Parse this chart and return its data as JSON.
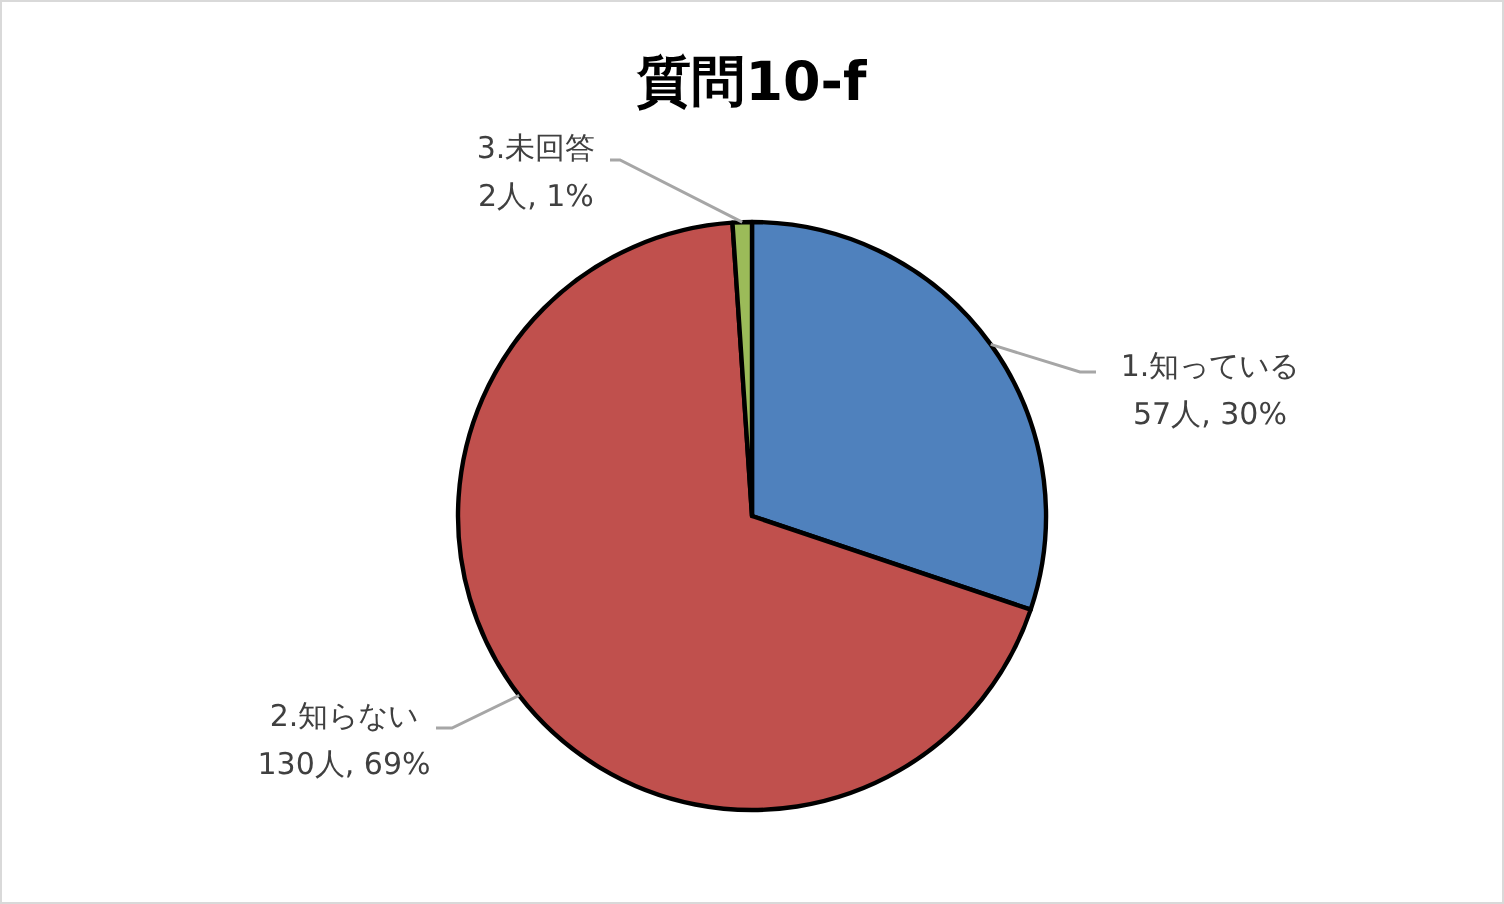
{
  "chart_data": {
    "type": "pie",
    "title": "質問10-f",
    "categories": [
      "1.知っている",
      "2.知らない",
      "3.未回答"
    ],
    "values": [
      57,
      130,
      2
    ],
    "colors": [
      "#4f81bd",
      "#c0504d",
      "#9bbb59"
    ],
    "value_labels": [
      "57人, 30%",
      "130人, 69%",
      "2人, 1%"
    ]
  }
}
